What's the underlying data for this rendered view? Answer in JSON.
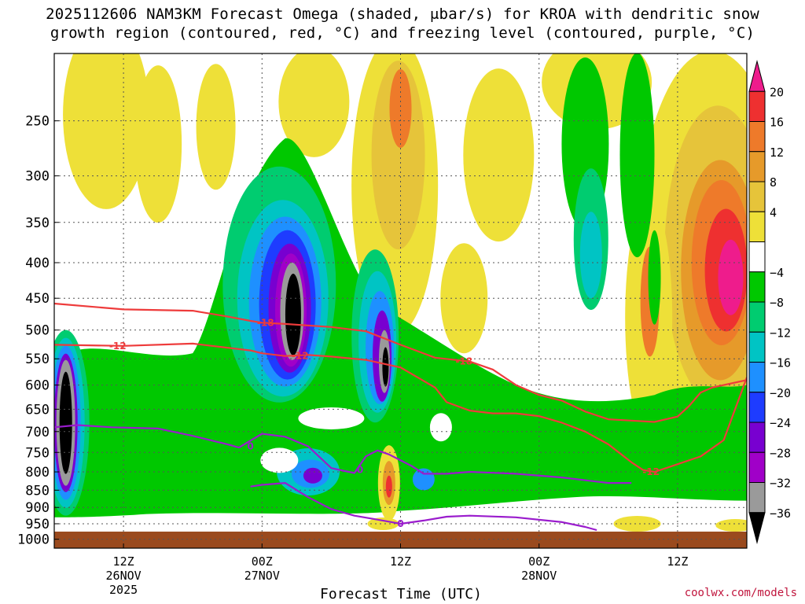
{
  "title_line1": "2025112606 NAM3KM Forecast Omega (shaded, μbar/s) for KROA with dendritic snow",
  "title_line2": "growth region (contoured, red, °C) and freezing level (contoured, purple, °C)",
  "watermark": "coolwx.com/models",
  "chart_data": {
    "type": "heatmap",
    "title": "2025112606 NAM3KM Forecast Omega (shaded, μbar/s) for KROA with dendritic snow growth region (contoured, red, °C) and freezing level (contoured, purple, °C)",
    "xlabel": "Forecast Time (UTC)",
    "ylabel": "",
    "y_axis": {
      "scale": "pressure (log)",
      "range": [
        1030,
        200
      ],
      "ticks": [
        250,
        300,
        350,
        400,
        450,
        500,
        550,
        600,
        650,
        700,
        750,
        800,
        850,
        900,
        950,
        1000
      ]
    },
    "x_axis": {
      "range_hours": [
        0,
        60
      ],
      "ticks": [
        {
          "hour": 6,
          "label": "12Z",
          "sub1": "26NOV",
          "sub2": "2025"
        },
        {
          "hour": 18,
          "label": "00Z",
          "sub1": "27NOV",
          "sub2": ""
        },
        {
          "hour": 30,
          "label": "12Z",
          "sub1": "",
          "sub2": ""
        },
        {
          "hour": 42,
          "label": "00Z",
          "sub1": "28NOV",
          "sub2": ""
        },
        {
          "hour": 54,
          "label": "12Z",
          "sub1": "",
          "sub2": ""
        }
      ]
    },
    "colorbar": {
      "labels": [
        "20",
        "16",
        "12",
        "8",
        "4",
        "−4",
        "−8",
        "−12",
        "−16",
        "−20",
        "−24",
        "−28",
        "−32",
        "−36"
      ],
      "colors": [
        "#ee1c8c",
        "#ee3030",
        "#ee7a2a",
        "#e69a2a",
        "#e6c43a",
        "#eee038",
        "#ffffff",
        "#00c800",
        "#00cc70",
        "#00c4c4",
        "#1e90ff",
        "#1e3cff",
        "#7800d0",
        "#a000c8",
        "#9a9a9a",
        "#000000"
      ]
    },
    "omega_regions": [
      {
        "name": "ascent-core-27nov-03z",
        "min_value": -36,
        "center_hour": 20.5,
        "center_pressure": 470
      },
      {
        "name": "ascent-core-27nov-11z",
        "min_value": -32,
        "center_hour": 28.5,
        "center_pressure": 560
      },
      {
        "name": "ascent-core-26nov-07z",
        "min_value": -36,
        "center_hour": 1,
        "center_pressure": 690
      },
      {
        "name": "descent-max-28nov-15z",
        "max_value": 20,
        "center_hour": 57.5,
        "center_pressure": 420
      },
      {
        "name": "descent-max-27nov-11z",
        "max_value": 12,
        "center_hour": 29,
        "center_pressure": 830
      }
    ],
    "series": [
      {
        "name": "dendritic isotherm -12°C",
        "color": "#ee3b3b",
        "label": "-12",
        "hours": [
          0,
          6,
          12,
          17,
          18,
          20,
          22,
          24,
          27,
          30,
          33,
          34,
          36,
          38,
          40,
          42,
          44,
          46,
          48,
          50,
          51,
          52,
          53,
          56,
          58,
          60
        ],
        "pressures": [
          525,
          527,
          523,
          535,
          540,
          545,
          543,
          546,
          552,
          566,
          605,
          635,
          653,
          659,
          659,
          665,
          680,
          700,
          730,
          775,
          795,
          800,
          790,
          760,
          720,
          585
        ]
      },
      {
        "name": "dendritic isotherm -18°C",
        "color": "#ee3b3b",
        "label": "-18",
        "hours": [
          0,
          6,
          12,
          15,
          17,
          18,
          20,
          24,
          27,
          30,
          33,
          36,
          38,
          40,
          42,
          44,
          46,
          48,
          50,
          52,
          54,
          55,
          56,
          57,
          58,
          60
        ],
        "pressures": [
          458,
          467,
          469,
          478,
          485,
          488,
          490,
          495,
          502,
          525,
          548,
          555,
          570,
          600,
          620,
          632,
          655,
          672,
          675,
          678,
          666,
          643,
          615,
          605,
          600,
          590
        ]
      },
      {
        "name": "freezing level 0°C",
        "color": "#9a1ccd",
        "label": "0",
        "hours": [
          0,
          2,
          5,
          9,
          12,
          15,
          16,
          18,
          20,
          22,
          24,
          26,
          27,
          28,
          29,
          31,
          32,
          34,
          36,
          40,
          44,
          48,
          50
        ],
        "pressures": [
          690,
          685,
          690,
          693,
          710,
          730,
          738,
          705,
          712,
          735,
          790,
          803,
          760,
          745,
          755,
          785,
          805,
          805,
          800,
          805,
          815,
          830,
          830
        ]
      },
      {
        "name": "freezing level 0°C (lower contour)",
        "color": "#9a1ccd",
        "label": "0",
        "hours": [
          17,
          18,
          20,
          22,
          24,
          26,
          28,
          30,
          32,
          34,
          36,
          40,
          44,
          46,
          47
        ],
        "pressures": [
          840,
          835,
          830,
          870,
          905,
          925,
          937,
          950,
          940,
          928,
          925,
          930,
          945,
          960,
          970
        ]
      }
    ],
    "isotherm_labels": [
      {
        "text": "-12",
        "hour": 5.5,
        "pressure": 527
      },
      {
        "text": "-18",
        "hour": 18.3,
        "pressure": 488
      },
      {
        "text": "-12",
        "hour": 21.3,
        "pressure": 545
      },
      {
        "text": "-18",
        "hour": 35.5,
        "pressure": 555
      },
      {
        "text": "-12",
        "hour": 51.7,
        "pressure": 800
      },
      {
        "text": "0",
        "hour": 17.0,
        "pressure": 735
      },
      {
        "text": "0",
        "hour": 26.5,
        "pressure": 795
      },
      {
        "text": "0",
        "hour": 30.0,
        "pressure": 950
      }
    ],
    "ground": {
      "color": "#9a4a1e",
      "label": "surface (terrain below ~975 mb)"
    }
  }
}
